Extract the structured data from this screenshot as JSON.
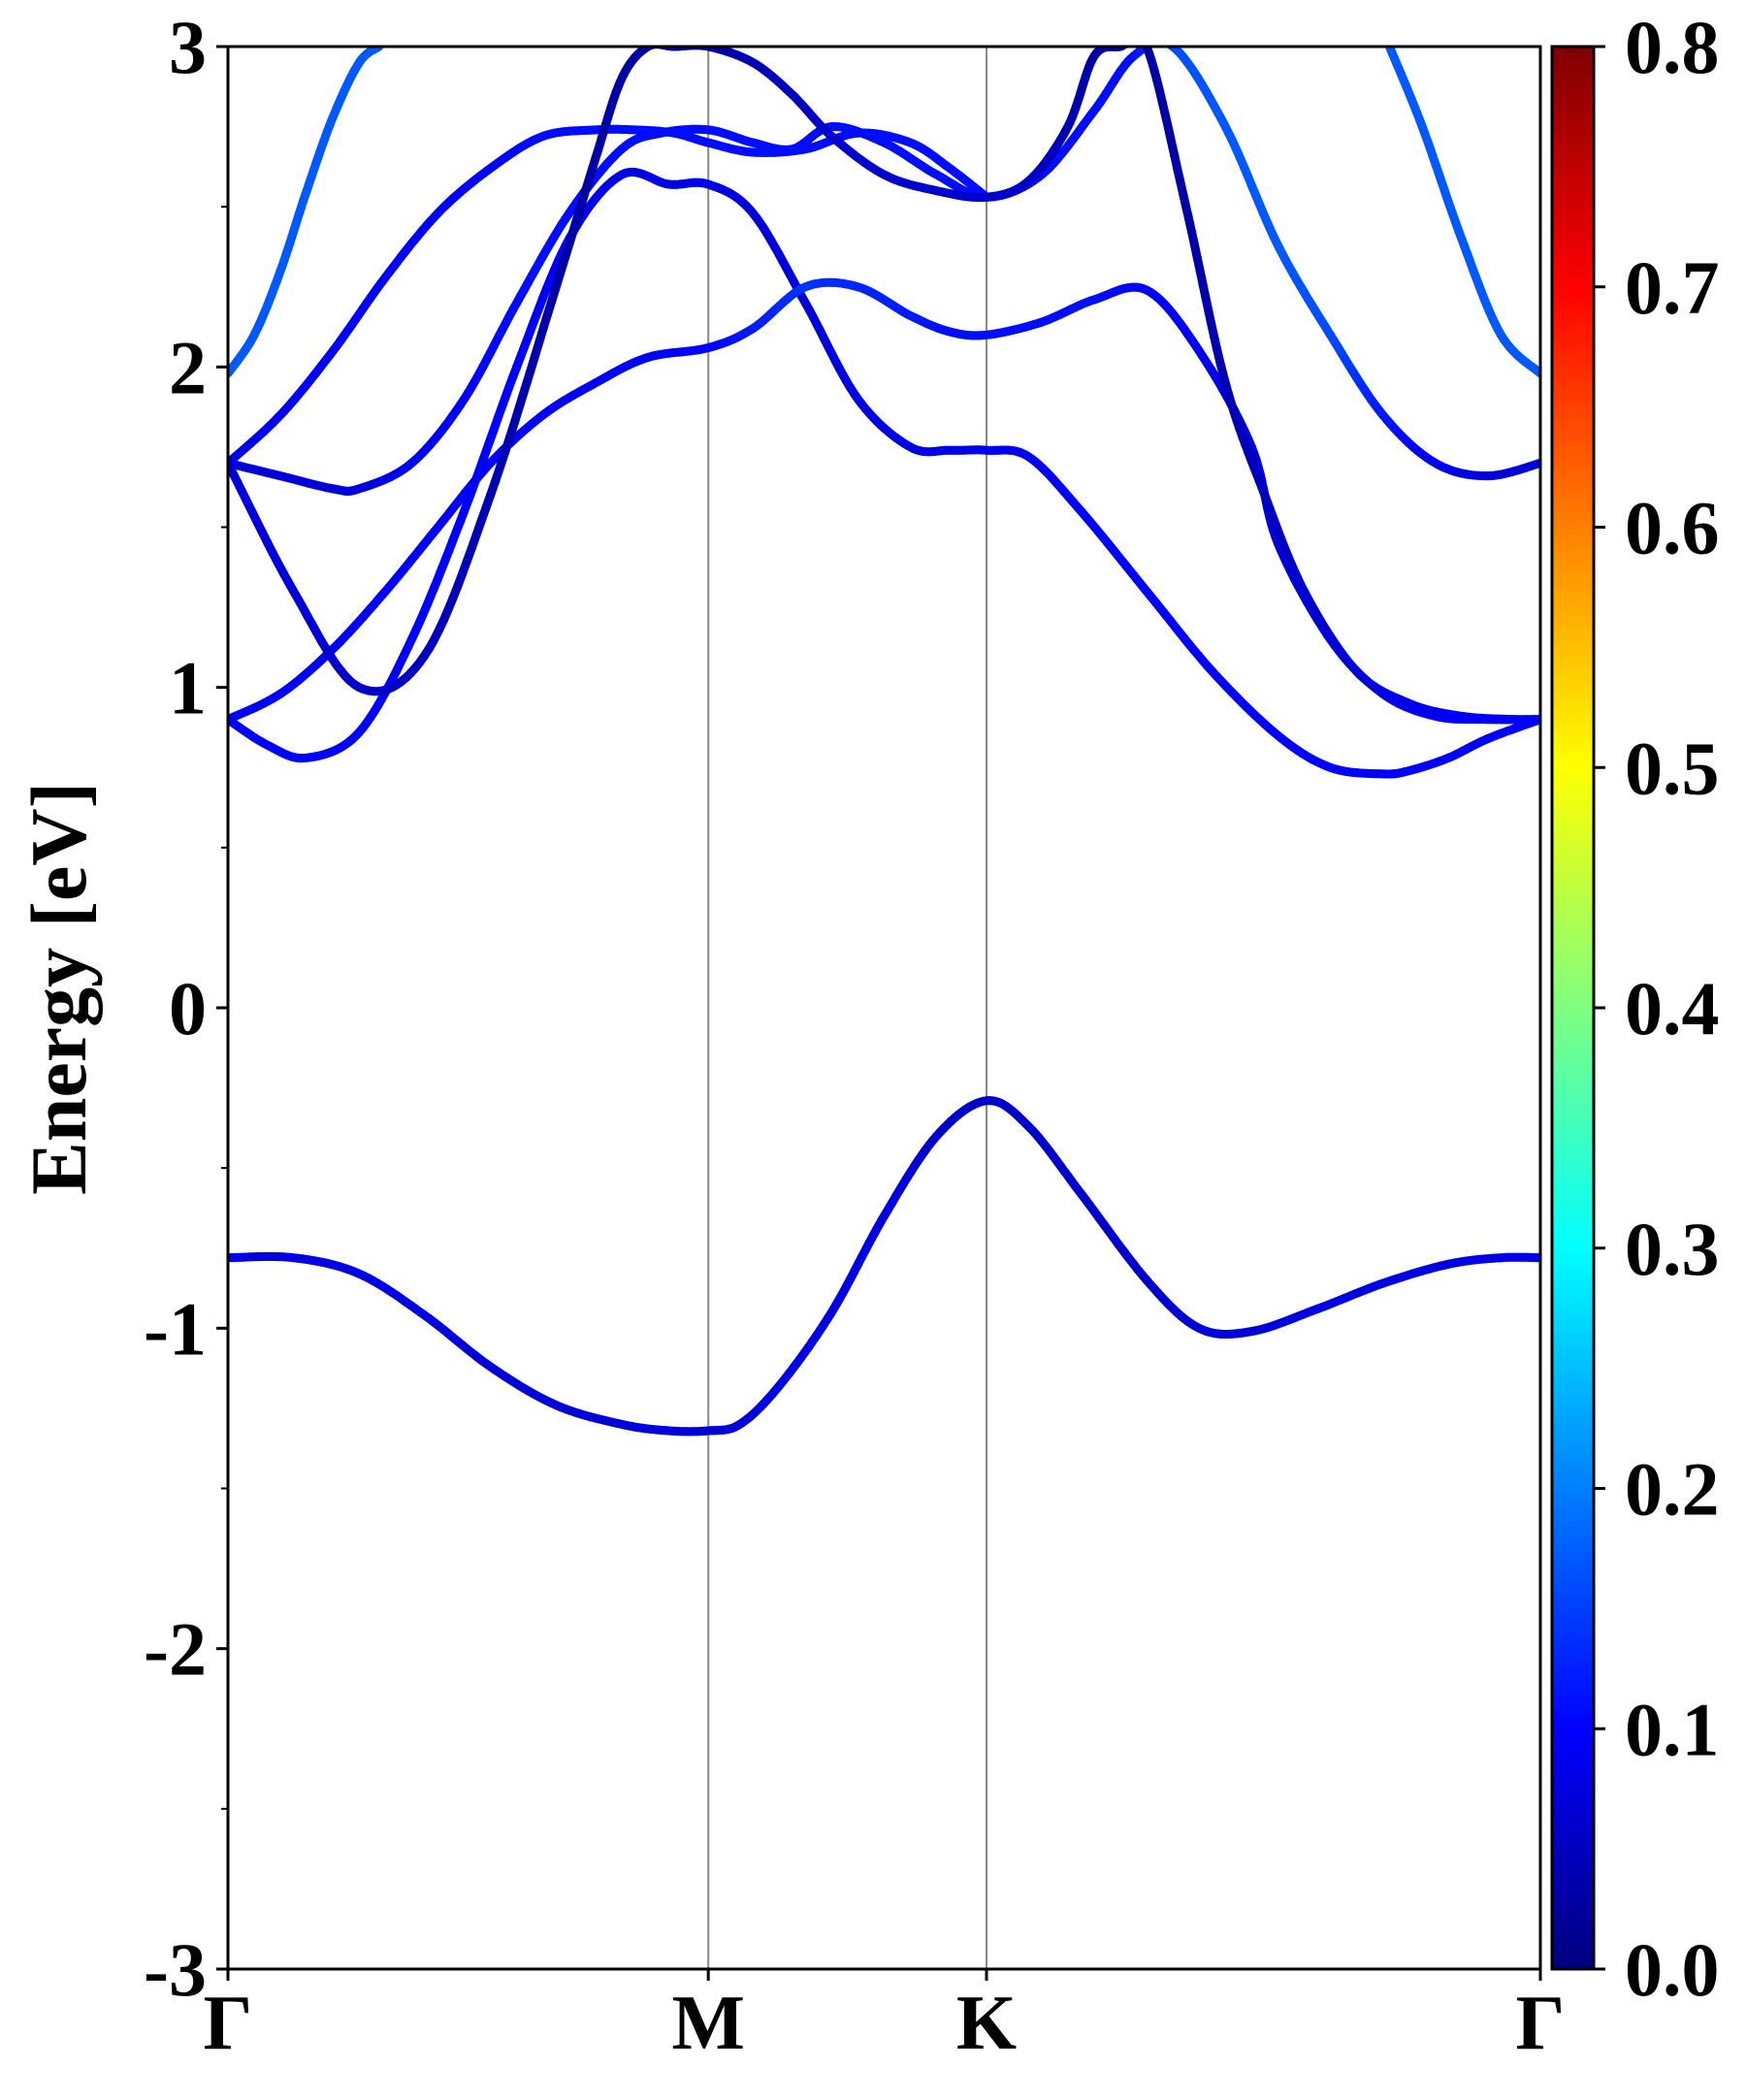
{
  "chart_data": {
    "type": "line",
    "title": "",
    "xlabel": "",
    "ylabel": "Energy [eV]",
    "ylim": [
      -3,
      3
    ],
    "y_ticks": [
      "-3",
      "-2",
      "-1",
      "0",
      "1",
      "2",
      "3"
    ],
    "y_tick_values": [
      -3,
      -2,
      -1,
      0,
      1,
      2,
      3
    ],
    "y_minor_step": 0.5,
    "x_ticks": [
      "Γ",
      "M",
      "K",
      "Γ"
    ],
    "x_tick_positions": [
      0,
      0.366,
      0.578,
      1.0
    ],
    "high_symmetry_lines": [
      0.366,
      0.578
    ],
    "xlim": [
      0,
      1
    ],
    "grid": false,
    "colorbar": {
      "range": [
        0.0,
        0.8
      ],
      "tick_labels": [
        "0.0",
        "0.1",
        "0.2",
        "0.3",
        "0.4",
        "0.5",
        "0.6",
        "0.7",
        "0.8"
      ],
      "tick_values": [
        0.0,
        0.1,
        0.2,
        0.3,
        0.4,
        0.5,
        0.6,
        0.7,
        0.8
      ],
      "colormap": "jet",
      "colormap_stops": [
        "#00007f",
        "#0000ff",
        "#007fff",
        "#00ffff",
        "#7fff7f",
        "#ffff00",
        "#ff7f00",
        "#ff0000",
        "#7f0000"
      ]
    },
    "series": [
      {
        "x": [
          0,
          0.05,
          0.1,
          0.15,
          0.2,
          0.25,
          0.3,
          0.336,
          0.366,
          0.39,
          0.42,
          0.46,
          0.5,
          0.54,
          0.578,
          0.61,
          0.65,
          0.7,
          0.74,
          0.78,
          0.83,
          0.88,
          0.93,
          0.97,
          1.0
        ],
        "y": [
          -0.78,
          -0.78,
          -0.83,
          -0.96,
          -1.12,
          -1.24,
          -1.3,
          -1.32,
          -1.32,
          -1.3,
          -1.18,
          -0.95,
          -0.65,
          -0.4,
          -0.29,
          -0.37,
          -0.58,
          -0.85,
          -1.0,
          -1.01,
          -0.94,
          -0.86,
          -0.8,
          -0.78,
          -0.78
        ],
        "weight": [
          0.08,
          0.08,
          0.08,
          0.08,
          0.07,
          0.07,
          0.07,
          0.07,
          0.07,
          0.07,
          0.08,
          0.08,
          0.08,
          0.06,
          0.06,
          0.06,
          0.06,
          0.06,
          0.07,
          0.07,
          0.08,
          0.08,
          0.08,
          0.08,
          0.08
        ]
      },
      {
        "x": [
          0,
          0.03,
          0.06,
          0.1,
          0.14,
          0.18,
          0.22,
          0.26,
          0.3,
          0.336,
          0.366,
          0.4,
          0.44,
          0.48,
          0.52,
          0.55,
          0.578,
          0.61,
          0.65,
          0.7,
          0.75,
          0.8,
          0.84,
          0.88,
          0.9,
          0.93,
          0.96,
          1.0
        ],
        "y": [
          0.9,
          0.82,
          0.78,
          0.86,
          1.15,
          1.55,
          2.0,
          2.4,
          2.6,
          2.57,
          2.57,
          2.48,
          2.2,
          1.9,
          1.75,
          1.74,
          1.74,
          1.72,
          1.55,
          1.3,
          1.05,
          0.85,
          0.75,
          0.73,
          0.74,
          0.78,
          0.84,
          0.9
        ],
        "weight": [
          0.1,
          0.1,
          0.1,
          0.1,
          0.1,
          0.1,
          0.1,
          0.09,
          0.08,
          0.08,
          0.08,
          0.07,
          0.07,
          0.08,
          0.08,
          0.08,
          0.08,
          0.09,
          0.1,
          0.1,
          0.1,
          0.1,
          0.1,
          0.1,
          0.1,
          0.1,
          0.1,
          0.1
        ]
      },
      {
        "x": [
          0,
          0.04,
          0.08,
          0.12,
          0.16,
          0.2,
          0.24,
          0.28,
          0.32,
          0.366,
          0.4,
          0.44,
          0.48,
          0.52,
          0.55,
          0.578,
          0.62,
          0.66,
          0.7,
          0.74,
          0.78,
          0.8,
          0.84,
          0.88,
          0.92,
          0.96,
          1.0
        ],
        "y": [
          0.9,
          0.98,
          1.12,
          1.3,
          1.5,
          1.7,
          1.85,
          1.95,
          2.03,
          2.06,
          2.12,
          2.25,
          2.25,
          2.16,
          2.11,
          2.1,
          2.14,
          2.21,
          2.24,
          2.05,
          1.75,
          1.45,
          1.15,
          0.98,
          0.91,
          0.9,
          0.9
        ],
        "weight": [
          0.1,
          0.1,
          0.1,
          0.1,
          0.1,
          0.1,
          0.1,
          0.1,
          0.1,
          0.1,
          0.12,
          0.14,
          0.13,
          0.12,
          0.11,
          0.11,
          0.11,
          0.11,
          0.1,
          0.09,
          0.07,
          0.07,
          0.08,
          0.09,
          0.1,
          0.1,
          0.1
        ]
      },
      {
        "x": [
          0,
          0.04,
          0.08,
          0.1,
          0.14,
          0.18,
          0.22,
          0.26,
          0.3,
          0.33,
          0.366,
          0.4,
          0.43,
          0.46,
          0.5,
          0.54,
          0.578,
          0.62,
          0.66,
          0.69,
          0.72,
          0.76,
          0.8,
          0.84,
          0.88,
          0.92,
          0.96,
          1.0
        ],
        "y": [
          1.7,
          1.66,
          1.62,
          1.62,
          1.7,
          1.9,
          2.2,
          2.48,
          2.68,
          2.73,
          2.74,
          2.7,
          2.68,
          2.75,
          2.7,
          2.6,
          2.53,
          2.6,
          2.8,
          2.97,
          3.0,
          2.75,
          2.38,
          2.1,
          1.85,
          1.7,
          1.66,
          1.7
        ],
        "weight": [
          0.07,
          0.07,
          0.07,
          0.07,
          0.09,
          0.1,
          0.11,
          0.11,
          0.11,
          0.11,
          0.11,
          0.11,
          0.11,
          0.11,
          0.11,
          0.11,
          0.11,
          0.11,
          0.11,
          0.11,
          0.16,
          0.17,
          0.17,
          0.16,
          0.12,
          0.09,
          0.07,
          0.07
        ]
      },
      {
        "x": [
          0,
          0.04,
          0.08,
          0.12,
          0.16,
          0.2,
          0.24,
          0.28,
          0.31,
          0.34,
          0.366,
          0.4,
          0.44,
          0.48,
          0.52,
          0.55,
          0.578
        ],
        "y": [
          1.7,
          1.85,
          2.05,
          2.28,
          2.48,
          2.62,
          2.72,
          2.74,
          2.74,
          2.73,
          2.7,
          2.67,
          2.68,
          2.73,
          2.7,
          2.62,
          2.53
        ],
        "weight": [
          0.08,
          0.09,
          0.1,
          0.1,
          0.1,
          0.1,
          0.11,
          0.11,
          0.11,
          0.11,
          0.11,
          0.11,
          0.11,
          0.11,
          0.11,
          0.11,
          0.11
        ]
      },
      {
        "x": [
          0,
          0.05,
          0.1,
          0.15,
          0.2,
          0.25,
          0.28,
          0.3,
          0.32,
          0.34,
          0.366,
          0.4,
          0.43,
          0.46,
          0.5,
          0.54,
          0.578,
          0.61,
          0.64,
          0.66,
          0.68,
          0.7,
          0.73,
          0.76,
          0.79,
          0.82,
          0.86,
          0.9,
          0.94,
          0.98,
          1.0
        ],
        "y": [
          1.7,
          1.3,
          1.0,
          1.1,
          1.6,
          2.25,
          2.65,
          2.9,
          3.0,
          3.0,
          3.0,
          2.95,
          2.85,
          2.72,
          2.6,
          2.55,
          2.53,
          2.58,
          2.75,
          2.97,
          3.0,
          3.0,
          2.5,
          1.95,
          1.6,
          1.3,
          1.05,
          0.95,
          0.91,
          0.9,
          0.9
        ],
        "weight": [
          0.07,
          0.07,
          0.06,
          0.05,
          0.04,
          0.03,
          0.03,
          0.03,
          0.03,
          0.03,
          0.03,
          0.04,
          0.05,
          0.06,
          0.06,
          0.06,
          0.06,
          0.06,
          0.04,
          0.03,
          0.03,
          0.03,
          0.03,
          0.04,
          0.05,
          0.06,
          0.07,
          0.08,
          0.09,
          0.1,
          0.1
        ]
      },
      {
        "x": [
          0,
          0.02,
          0.04,
          0.06,
          0.08,
          0.1,
          0.115
        ],
        "y": [
          1.98,
          2.1,
          2.3,
          2.55,
          2.78,
          2.95,
          3.0
        ],
        "weight": [
          0.17,
          0.17,
          0.17,
          0.17,
          0.17,
          0.17,
          0.17
        ]
      },
      {
        "x": [
          0.885,
          0.91,
          0.94,
          0.97,
          1.0
        ],
        "y": [
          3.0,
          2.75,
          2.4,
          2.1,
          1.98
        ],
        "weight": [
          0.17,
          0.17,
          0.17,
          0.17,
          0.17
        ]
      }
    ]
  }
}
